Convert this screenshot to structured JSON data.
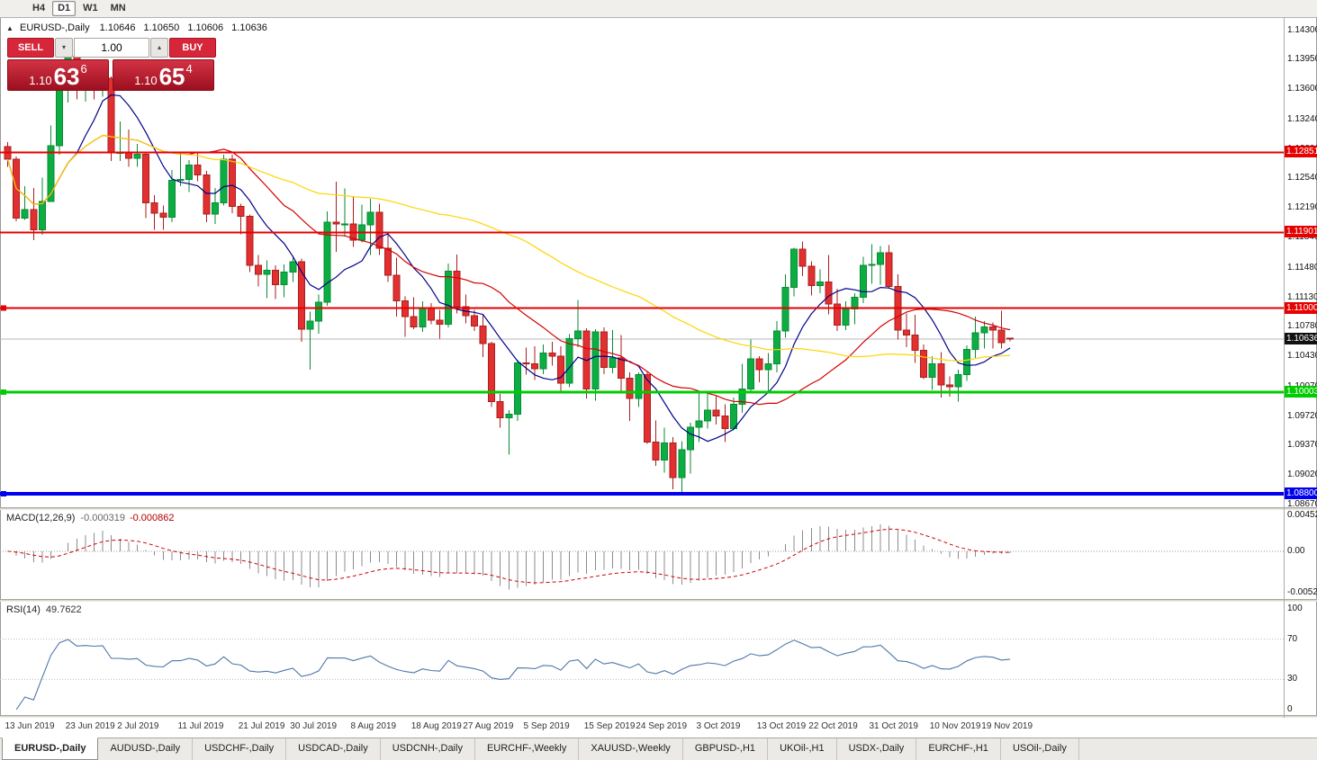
{
  "toolbar": {
    "timeframes": [
      "H4",
      "D1",
      "W1",
      "MN"
    ],
    "active": "D1"
  },
  "chart_header": {
    "symbol": "EURUSD-,Daily",
    "ohlc": {
      "open": "1.10646",
      "high": "1.10650",
      "low": "1.10606",
      "close": "1.10636"
    }
  },
  "trade_panel": {
    "sell_label": "SELL",
    "buy_label": "BUY",
    "lot_value": "1.00",
    "sell_price": {
      "prefix": "1.10",
      "big": "63",
      "sup": "6"
    },
    "buy_price": {
      "prefix": "1.10",
      "big": "65",
      "sup": "4"
    }
  },
  "tabs": {
    "active": "EURUSD-,Daily",
    "items": [
      "EURUSD-,Daily",
      "AUDUSD-,Daily",
      "USDCHF-,Daily",
      "USDCAD-,Daily",
      "USDCNH-,Daily",
      "EURCHF-,Weekly",
      "XAUUSD-,Weekly",
      "GBPUSD-,H1",
      "UKOil-,H1",
      "USDX-,Daily",
      "EURCHF-,H1",
      "USOil-,Daily"
    ]
  },
  "chart_data": {
    "type": "candlestick",
    "title": "EURUSD-,Daily",
    "ylim": [
      1.0868,
      1.1436
    ],
    "price_axis_ticks": [
      "1.14300",
      "1.13950",
      "1.13600",
      "1.13240",
      "1.12890",
      "1.12540",
      "1.12190",
      "1.11840",
      "1.11480",
      "1.11130",
      "1.10780",
      "1.10430",
      "1.10070",
      "1.09720",
      "1.09370",
      "1.09020",
      "1.08670"
    ],
    "current_price": {
      "value": 1.10636,
      "label": "1.10636",
      "color": "#111111",
      "line_color": "#b8b8b8"
    },
    "levels": [
      {
        "price": 1.12851,
        "label": "1.12851",
        "color": "#e60000",
        "width": 2,
        "anchor": false
      },
      {
        "price": 1.11901,
        "label": "1.11901",
        "color": "#e60000",
        "width": 2,
        "anchor": false
      },
      {
        "price": 1.11,
        "label": "1.11000",
        "color": "#e60000",
        "width": 2,
        "anchor": true
      },
      {
        "price": 1.10003,
        "label": "1.10003",
        "color": "#00cc00",
        "width": 3,
        "anchor": true
      },
      {
        "price": 1.088,
        "label": "1.08800",
        "color": "#0000ee",
        "width": 4,
        "anchor": true
      }
    ],
    "up_color": "#0cae43",
    "up_border": "#078a33",
    "down_color": "#e23030",
    "down_border": "#a81e1e",
    "moving_averages": [
      {
        "period": 8,
        "color": "#00008b"
      },
      {
        "period": 21,
        "color": "#d40000"
      },
      {
        "period": 55,
        "color": "#ffd400"
      }
    ],
    "date_ticks": [
      {
        "bar": 0,
        "label": "13 Jun 2019"
      },
      {
        "bar": 7,
        "label": "23 Jun 2019"
      },
      {
        "bar": 13,
        "label": "2 Jul 2019"
      },
      {
        "bar": 20,
        "label": "11 Jul 2019"
      },
      {
        "bar": 27,
        "label": "21 Jul 2019"
      },
      {
        "bar": 33,
        "label": "30 Jul 2019"
      },
      {
        "bar": 40,
        "label": "8 Aug 2019"
      },
      {
        "bar": 47,
        "label": "18 Aug 2019"
      },
      {
        "bar": 53,
        "label": "27 Aug 2019"
      },
      {
        "bar": 60,
        "label": "5 Sep 2019"
      },
      {
        "bar": 67,
        "label": "15 Sep 2019"
      },
      {
        "bar": 73,
        "label": "24 Sep 2019"
      },
      {
        "bar": 80,
        "label": "3 Oct 2019"
      },
      {
        "bar": 87,
        "label": "13 Oct 2019"
      },
      {
        "bar": 93,
        "label": "22 Oct 2019"
      },
      {
        "bar": 100,
        "label": "31 Oct 2019"
      },
      {
        "bar": 107,
        "label": "10 Nov 2019"
      },
      {
        "bar": 113,
        "label": "19 Nov 2019"
      }
    ],
    "candles": [
      [
        1.1292,
        1.1297,
        1.1268,
        1.1277
      ],
      [
        1.1277,
        1.128,
        1.1203,
        1.1207
      ],
      [
        1.1207,
        1.1245,
        1.1205,
        1.1217
      ],
      [
        1.1217,
        1.1243,
        1.1181,
        1.1193
      ],
      [
        1.1193,
        1.1255,
        1.1187,
        1.1227
      ],
      [
        1.1227,
        1.1317,
        1.1226,
        1.1293
      ],
      [
        1.1293,
        1.1378,
        1.1282,
        1.1369
      ],
      [
        1.1369,
        1.1412,
        1.1344,
        1.1399
      ],
      [
        1.1399,
        1.1403,
        1.1348,
        1.1367
      ],
      [
        1.1367,
        1.1391,
        1.1345,
        1.1372
      ],
      [
        1.1372,
        1.1388,
        1.1348,
        1.1368
      ],
      [
        1.1368,
        1.1394,
        1.1351,
        1.1373
      ],
      [
        1.1373,
        1.1375,
        1.1275,
        1.1285
      ],
      [
        1.1285,
        1.1322,
        1.1275,
        1.1285
      ],
      [
        1.1285,
        1.1312,
        1.1268,
        1.1278
      ],
      [
        1.1278,
        1.1295,
        1.1268,
        1.1283
      ],
      [
        1.1283,
        1.1286,
        1.1207,
        1.1225
      ],
      [
        1.1225,
        1.1234,
        1.1193,
        1.1213
      ],
      [
        1.1213,
        1.1222,
        1.1193,
        1.1208
      ],
      [
        1.1208,
        1.1264,
        1.1202,
        1.1252
      ],
      [
        1.1252,
        1.1286,
        1.1245,
        1.1253
      ],
      [
        1.1253,
        1.1276,
        1.1238,
        1.127
      ],
      [
        1.127,
        1.1285,
        1.1251,
        1.1258
      ],
      [
        1.1258,
        1.1263,
        1.1202,
        1.1212
      ],
      [
        1.1212,
        1.1243,
        1.12,
        1.1225
      ],
      [
        1.1225,
        1.1282,
        1.1222,
        1.1277
      ],
      [
        1.1277,
        1.1282,
        1.1213,
        1.1221
      ],
      [
        1.1221,
        1.1224,
        1.1188,
        1.1209
      ],
      [
        1.1209,
        1.1211,
        1.1143,
        1.1151
      ],
      [
        1.1151,
        1.1163,
        1.1126,
        1.114
      ],
      [
        1.114,
        1.1157,
        1.1112,
        1.1145
      ],
      [
        1.1145,
        1.1151,
        1.1111,
        1.1128
      ],
      [
        1.1128,
        1.1152,
        1.1113,
        1.1143
      ],
      [
        1.1143,
        1.1162,
        1.1131,
        1.1155
      ],
      [
        1.1155,
        1.1159,
        1.106,
        1.1075
      ],
      [
        1.1075,
        1.1096,
        1.1027,
        1.1085
      ],
      [
        1.1085,
        1.1116,
        1.107,
        1.1107
      ],
      [
        1.1107,
        1.1215,
        1.1103,
        1.1202
      ],
      [
        1.1202,
        1.125,
        1.1167,
        1.12
      ],
      [
        1.12,
        1.1242,
        1.1185,
        1.12
      ],
      [
        1.12,
        1.1233,
        1.1173,
        1.1181
      ],
      [
        1.1181,
        1.1223,
        1.1178,
        1.1199
      ],
      [
        1.1199,
        1.123,
        1.1163,
        1.1214
      ],
      [
        1.1214,
        1.1224,
        1.1163,
        1.1171
      ],
      [
        1.1171,
        1.119,
        1.1131,
        1.1139
      ],
      [
        1.1139,
        1.116,
        1.109,
        1.1109
      ],
      [
        1.1109,
        1.1114,
        1.1066,
        1.109
      ],
      [
        1.109,
        1.1113,
        1.1075,
        1.1078
      ],
      [
        1.1078,
        1.1108,
        1.1072,
        1.11
      ],
      [
        1.11,
        1.1106,
        1.1081,
        1.1086
      ],
      [
        1.1086,
        1.1098,
        1.1064,
        1.1081
      ],
      [
        1.1081,
        1.1153,
        1.1077,
        1.1144
      ],
      [
        1.1144,
        1.1164,
        1.1094,
        1.1102
      ],
      [
        1.1102,
        1.1116,
        1.1082,
        1.1091
      ],
      [
        1.1091,
        1.1098,
        1.1073,
        1.1079
      ],
      [
        1.1079,
        1.1093,
        1.1042,
        1.1058
      ],
      [
        1.1058,
        1.106,
        1.0983,
        1.0989
      ],
      [
        1.0989,
        1.0998,
        1.0958,
        1.097
      ],
      [
        1.097,
        1.0979,
        1.0926,
        1.0974
      ],
      [
        1.0974,
        1.1039,
        1.0966,
        1.1035
      ],
      [
        1.1035,
        1.1053,
        1.1021,
        1.1034
      ],
      [
        1.1034,
        1.1055,
        1.1015,
        1.1028
      ],
      [
        1.1028,
        1.1057,
        1.1022,
        1.1047
      ],
      [
        1.1047,
        1.106,
        1.1032,
        1.1043
      ],
      [
        1.1043,
        1.1055,
        1.0999,
        1.1011
      ],
      [
        1.1011,
        1.1069,
        1.1006,
        1.1064
      ],
      [
        1.1064,
        1.111,
        1.1054,
        1.1073
      ],
      [
        1.1073,
        1.1076,
        1.0993,
        1.1004
      ],
      [
        1.1004,
        1.1075,
        1.099,
        1.1072
      ],
      [
        1.1072,
        1.1077,
        1.1022,
        1.103
      ],
      [
        1.103,
        1.1074,
        1.1023,
        1.1041
      ],
      [
        1.1041,
        1.1068,
        1.0999,
        1.1017
      ],
      [
        1.1017,
        1.1024,
        1.0966,
        1.0993
      ],
      [
        1.0993,
        1.1024,
        1.0983,
        1.1021
      ],
      [
        1.1021,
        1.1025,
        1.0939,
        1.0941
      ],
      [
        1.0941,
        1.0967,
        1.0913,
        1.092
      ],
      [
        1.092,
        1.0958,
        1.0905,
        1.094
      ],
      [
        1.094,
        1.0947,
        1.0885,
        1.0899
      ],
      [
        1.0899,
        1.0942,
        1.0879,
        1.0932
      ],
      [
        1.0932,
        1.0964,
        1.0904,
        1.0959
      ],
      [
        1.0959,
        1.0999,
        1.0941,
        1.0966
      ],
      [
        1.0966,
        1.1,
        1.0957,
        1.0979
      ],
      [
        1.0979,
        1.0996,
        1.0962,
        1.0972
      ],
      [
        1.0972,
        1.0986,
        1.0941,
        1.0957
      ],
      [
        1.0957,
        1.0994,
        1.0955,
        1.0986
      ],
      [
        1.0986,
        1.1034,
        1.0976,
        1.1004
      ],
      [
        1.1004,
        1.1063,
        1.1002,
        1.104
      ],
      [
        1.104,
        1.1043,
        1.1012,
        1.1027
      ],
      [
        1.1027,
        1.1047,
        1.1001,
        1.1034
      ],
      [
        1.1034,
        1.1085,
        1.1024,
        1.1073
      ],
      [
        1.1073,
        1.114,
        1.1065,
        1.1125
      ],
      [
        1.1125,
        1.1172,
        1.1114,
        1.117
      ],
      [
        1.117,
        1.1179,
        1.1138,
        1.115
      ],
      [
        1.115,
        1.1156,
        1.1115,
        1.1127
      ],
      [
        1.1127,
        1.1146,
        1.1118,
        1.1131
      ],
      [
        1.1131,
        1.1163,
        1.1093,
        1.1105
      ],
      [
        1.1105,
        1.1123,
        1.1073,
        1.108
      ],
      [
        1.108,
        1.1108,
        1.1074,
        1.1099
      ],
      [
        1.1099,
        1.1118,
        1.1081,
        1.1113
      ],
      [
        1.1113,
        1.1161,
        1.1106,
        1.1151
      ],
      [
        1.1151,
        1.1176,
        1.1129,
        1.1152
      ],
      [
        1.1152,
        1.1174,
        1.1128,
        1.1166
      ],
      [
        1.1166,
        1.1175,
        1.1123,
        1.1126
      ],
      [
        1.1126,
        1.114,
        1.1063,
        1.1074
      ],
      [
        1.1074,
        1.1094,
        1.1054,
        1.1068
      ],
      [
        1.1068,
        1.1092,
        1.1035,
        1.105
      ],
      [
        1.105,
        1.1057,
        1.1016,
        1.1018
      ],
      [
        1.1018,
        1.1043,
        1.1003,
        1.1034
      ],
      [
        1.1034,
        1.1048,
        1.0994,
        1.1009
      ],
      [
        1.1009,
        1.1019,
        1.0995,
        1.1007
      ],
      [
        1.1007,
        1.1027,
        1.0989,
        1.1021
      ],
      [
        1.1021,
        1.1056,
        1.1014,
        1.1051
      ],
      [
        1.1051,
        1.109,
        1.1041,
        1.1071
      ],
      [
        1.1071,
        1.1085,
        1.1052,
        1.1078
      ],
      [
        1.1078,
        1.1083,
        1.1052,
        1.1074
      ],
      [
        1.1074,
        1.1097,
        1.1052,
        1.1059
      ],
      [
        1.10646,
        1.1065,
        1.10606,
        1.10636
      ]
    ],
    "indicators": {
      "macd": {
        "label": "MACD(12,26,9)",
        "value_main": "-0.000319",
        "value_signal": "-0.000862",
        "fast": 12,
        "slow": 26,
        "smoothing": 9,
        "ylim": [
          -0.0052205,
          0.0045236
        ],
        "axis_ticks": [
          "0.0045236",
          "0.00",
          "-0.0052205"
        ],
        "histogram_color": "#8c8c8c",
        "signal_color": "#d00000"
      },
      "rsi": {
        "label": "RSI(14)",
        "value_text": "49.7622",
        "period": 14,
        "ylim": [
          0,
          100
        ],
        "axis_ticks": [
          "100",
          "70",
          "30",
          "0"
        ],
        "level_lines": [
          70,
          30
        ],
        "color": "#4f76a8"
      }
    }
  }
}
